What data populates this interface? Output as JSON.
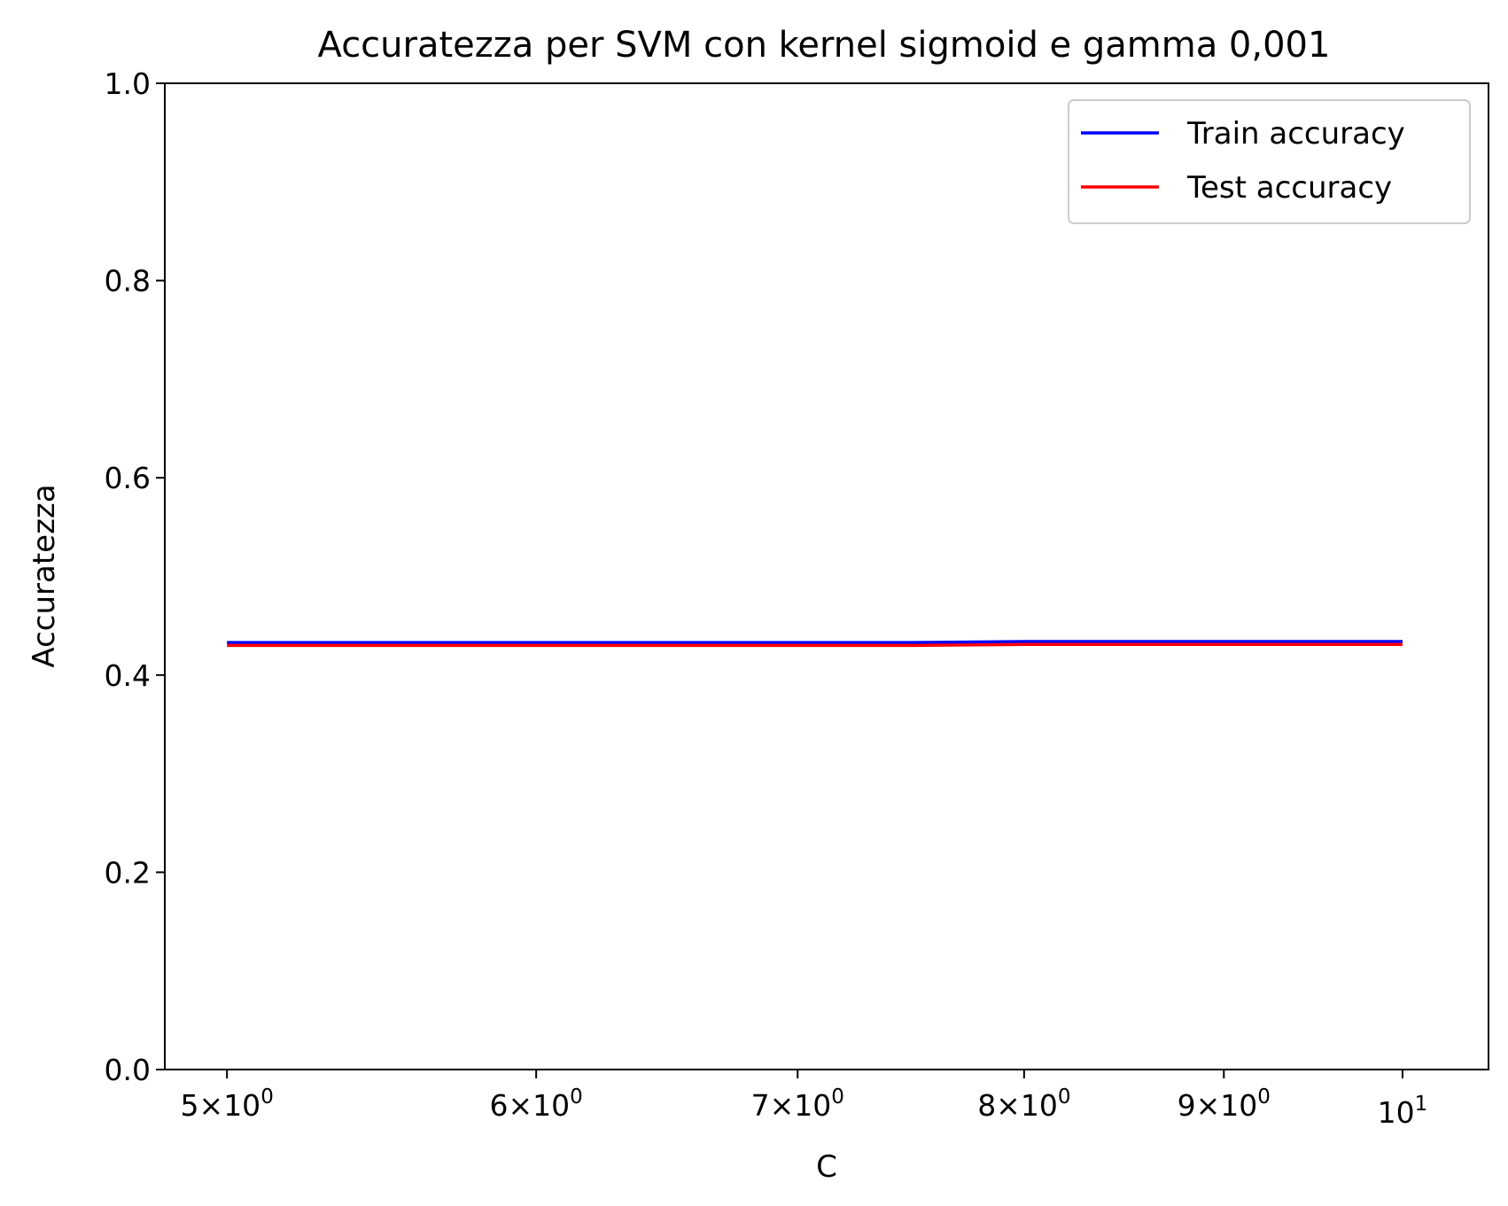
{
  "chart_data": {
    "type": "line",
    "title": "Accuratezza per SVM con kernel sigmoid e gamma 0,001",
    "xlabel": "C",
    "ylabel": "Accuratezza",
    "xscale": "log",
    "xlim": [
      4.82,
      10.52
    ],
    "ylim": [
      0.0,
      1.0
    ],
    "grid": false,
    "legend_position": "upper right",
    "x": [
      5,
      5.5,
      6,
      6.5,
      7,
      7.5,
      8,
      8.5,
      9,
      9.5,
      10
    ],
    "series": [
      {
        "name": "Train accuracy",
        "color": "#0000ff",
        "values": [
          0.433,
          0.433,
          0.433,
          0.433,
          0.433,
          0.433,
          0.434,
          0.434,
          0.434,
          0.434,
          0.434
        ]
      },
      {
        "name": "Test accuracy",
        "color": "#ff0000",
        "values": [
          0.43,
          0.43,
          0.43,
          0.43,
          0.43,
          0.43,
          0.431,
          0.431,
          0.431,
          0.431,
          0.431
        ]
      }
    ],
    "x_ticks": [
      {
        "value": 5,
        "mantissa": "5",
        "base": "10",
        "exp": "0"
      },
      {
        "value": 6,
        "mantissa": "6",
        "base": "10",
        "exp": "0"
      },
      {
        "value": 7,
        "mantissa": "7",
        "base": "10",
        "exp": "0"
      },
      {
        "value": 8,
        "mantissa": "8",
        "base": "10",
        "exp": "0"
      },
      {
        "value": 9,
        "mantissa": "9",
        "base": "10",
        "exp": "0"
      },
      {
        "value": 10,
        "mantissa": "",
        "base": "10",
        "exp": "1"
      }
    ],
    "y_ticks": [
      {
        "value": 0.0,
        "label": "0.0"
      },
      {
        "value": 0.2,
        "label": "0.2"
      },
      {
        "value": 0.4,
        "label": "0.4"
      },
      {
        "value": 0.6,
        "label": "0.6"
      },
      {
        "value": 0.8,
        "label": "0.8"
      },
      {
        "value": 1.0,
        "label": "1.0"
      }
    ]
  }
}
